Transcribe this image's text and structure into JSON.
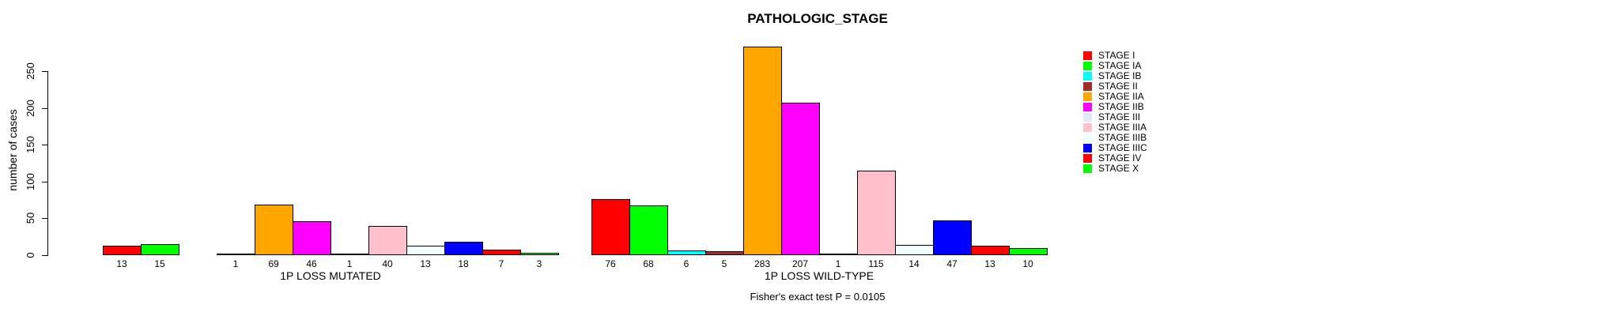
{
  "chart_data": {
    "type": "bar",
    "title": "PATHOLOGIC_STAGE",
    "ylabel": "number of cases",
    "xlabel": "",
    "yticks": [
      0,
      50,
      100,
      150,
      200,
      250
    ],
    "ylim": [
      0,
      283
    ],
    "grid": false,
    "legend_position": "top-right",
    "categories": [
      "STAGE I",
      "STAGE IA",
      "STAGE IB",
      "STAGE II",
      "STAGE IIA",
      "STAGE IIB",
      "STAGE III",
      "STAGE IIIA",
      "STAGE IIIB",
      "STAGE IIIC",
      "STAGE IV",
      "STAGE X"
    ],
    "colors": [
      "#FF0000",
      "#00FF00",
      "#00FFFF",
      "#A52A2A",
      "#FFA500",
      "#FF00FF",
      "#E6E6FA",
      "#FFC0CB",
      "#F0FFFF",
      "#0000FF",
      "#FF0000",
      "#00FF00"
    ],
    "series": [
      {
        "name": "1P LOSS MUTATED",
        "values": [
          13,
          15,
          0,
          1,
          69,
          46,
          1,
          40,
          13,
          18,
          7,
          3
        ]
      },
      {
        "name": "1P LOSS WILD-TYPE",
        "values": [
          76,
          68,
          6,
          5,
          283,
          207,
          1,
          115,
          14,
          47,
          13,
          10
        ]
      }
    ],
    "annotation": "Fisher's exact test P = 0.0105"
  }
}
